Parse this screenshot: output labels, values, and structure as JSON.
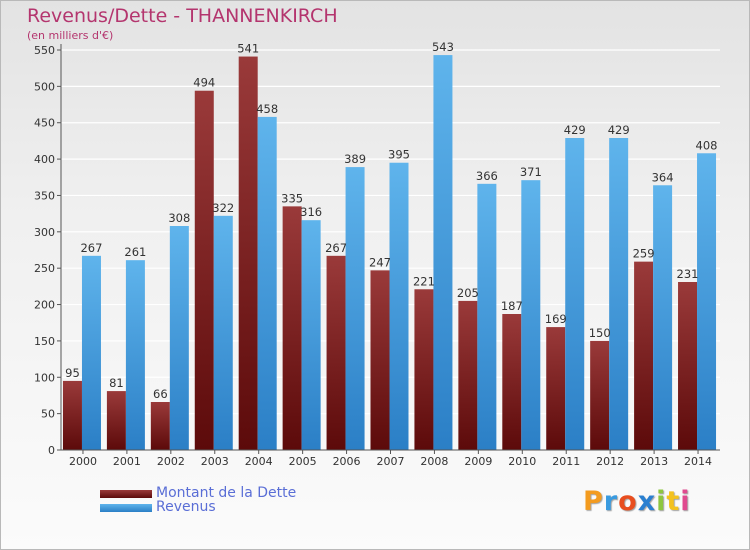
{
  "header": {
    "title": "Revenus/Dette - THANNENKIRCH",
    "subtitle": "(en milliers d'€)"
  },
  "brand": {
    "letters": [
      "P",
      "r",
      "o",
      "x",
      "i",
      "t",
      "i"
    ],
    "colors": [
      "#f39b1f",
      "#3a9be0",
      "#e84e1f",
      "#2a7fd0",
      "#8dc63f",
      "#f3c21f",
      "#e04a8f"
    ]
  },
  "colors": {
    "debt_dark": "#5c0a0a",
    "debt_light": "#9a3a3a",
    "revenue_dark": "#2b7fc6",
    "revenue_light": "#5fb4ec",
    "axis": "#555555",
    "grid": "#ffffff"
  },
  "chart_data": {
    "type": "bar",
    "title": "Revenus/Dette - THANNENKIRCH",
    "ylabel": "(en milliers d'€)",
    "categories": [
      "2000",
      "2001",
      "2002",
      "2003",
      "2004",
      "2005",
      "2006",
      "2007",
      "2008",
      "2009",
      "2010",
      "2011",
      "2012",
      "2013",
      "2014"
    ],
    "series": [
      {
        "name": "Montant de la Dette",
        "values": [
          95,
          81,
          66,
          494,
          541,
          335,
          267,
          247,
          221,
          205,
          187,
          169,
          150,
          259,
          231
        ]
      },
      {
        "name": "Revenus",
        "values": [
          267,
          261,
          308,
          322,
          458,
          316,
          389,
          395,
          543,
          366,
          371,
          429,
          429,
          364,
          408
        ]
      }
    ],
    "ylim": [
      0,
      550
    ],
    "yticks": [
      0,
      50,
      100,
      150,
      200,
      250,
      300,
      350,
      400,
      450,
      500,
      550
    ],
    "grid": true,
    "legend_position": "bottom-left"
  }
}
